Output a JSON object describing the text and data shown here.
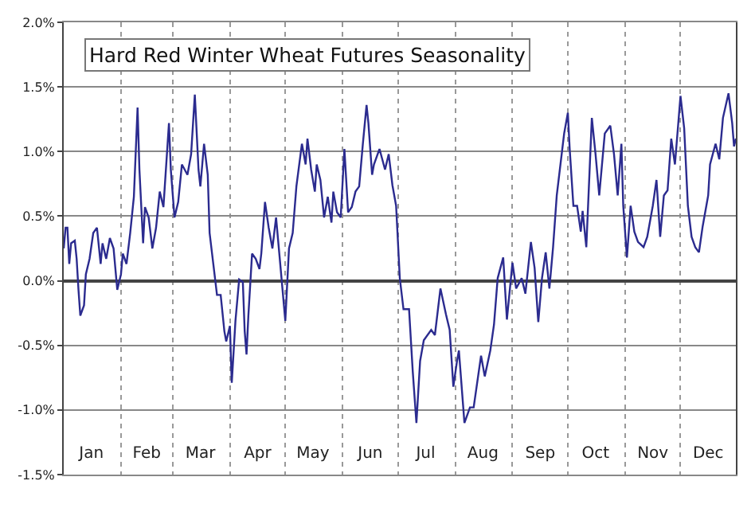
{
  "chart_data": {
    "type": "line",
    "title": "Hard Red Winter Wheat Futures Seasonality",
    "x": [
      "--01-01",
      "--01-02",
      "--01-03",
      "--01-04",
      "--01-05",
      "--01-07",
      "--01-08",
      "--01-09",
      "--01-10",
      "--01-12",
      "--01-13",
      "--01-15",
      "--01-17",
      "--01-19",
      "--01-21",
      "--01-22",
      "--01-24",
      "--01-26",
      "--01-28",
      "--01-30",
      "--02-01",
      "--02-02",
      "--02-04",
      "--02-06",
      "--02-08",
      "--02-10",
      "--02-11",
      "--02-13",
      "--02-14",
      "--02-16",
      "--02-18",
      "--02-20",
      "--02-22",
      "--02-24",
      "--02-27",
      "--02-28",
      "--03-02",
      "--03-04",
      "--03-06",
      "--03-09",
      "--03-11",
      "--03-13",
      "--03-15",
      "--03-16",
      "--03-18",
      "--03-20",
      "--03-21",
      "--03-23",
      "--03-25",
      "--03-27",
      "--03-29",
      "--03-30",
      "--04-01",
      "--04-02",
      "--04-04",
      "--04-06",
      "--04-08",
      "--04-09",
      "--04-10",
      "--04-11",
      "--04-13",
      "--04-15",
      "--04-17",
      "--04-18",
      "--04-20",
      "--04-22",
      "--04-24",
      "--04-26",
      "--04-28",
      "--04-30",
      "--05-01",
      "--05-03",
      "--05-05",
      "--05-07",
      "--05-10",
      "--05-12",
      "--05-13",
      "--05-15",
      "--05-17",
      "--05-18",
      "--05-20",
      "--05-22",
      "--05-24",
      "--05-26",
      "--05-27",
      "--05-29",
      "--05-31",
      "--06-02",
      "--06-04",
      "--06-06",
      "--06-08",
      "--06-10",
      "--06-12",
      "--06-14",
      "--06-15",
      "--06-17",
      "--06-18",
      "--06-21",
      "--06-24",
      "--06-26",
      "--06-28",
      "--06-30",
      "--07-02",
      "--07-04",
      "--07-07",
      "--07-09",
      "--07-11",
      "--07-13",
      "--07-15",
      "--07-19",
      "--07-21",
      "--07-24",
      "--07-27",
      "--07-29",
      "--07-31",
      "--08-02",
      "--08-03",
      "--08-06",
      "--08-09",
      "--08-11",
      "--08-15",
      "--08-17",
      "--08-20",
      "--08-22",
      "--08-24",
      "--08-27",
      "--08-29",
      "--09-01",
      "--09-03",
      "--09-06",
      "--09-08",
      "--09-11",
      "--09-13",
      "--09-15",
      "--09-17",
      "--09-19",
      "--09-21",
      "--09-23",
      "--09-25",
      "--09-29",
      "--10-01",
      "--10-02",
      "--10-04",
      "--10-06",
      "--10-08",
      "--10-09",
      "--10-11",
      "--10-14",
      "--10-16",
      "--10-18",
      "--10-21",
      "--10-24",
      "--10-26",
      "--10-28",
      "--10-30",
      "--10-31",
      "--11-02",
      "--11-04",
      "--11-06",
      "--11-08",
      "--11-11",
      "--11-13",
      "--11-16",
      "--11-18",
      "--11-20",
      "--11-22",
      "--11-24",
      "--11-26",
      "--11-28",
      "--12-01",
      "--12-03",
      "--12-05",
      "--12-07",
      "--12-09",
      "--12-11",
      "--12-13",
      "--12-16",
      "--12-17",
      "--12-20",
      "--12-22",
      "--12-24",
      "--12-27",
      "--12-29",
      "--12-30",
      "--12-31"
    ],
    "series": [
      {
        "color": "#2b2b8f",
        "values": [
          0.25,
          0.41,
          0.41,
          0.13,
          0.29,
          0.31,
          0.17,
          -0.07,
          -0.27,
          -0.19,
          0.05,
          0.17,
          0.37,
          0.41,
          0.13,
          0.29,
          0.17,
          0.33,
          0.25,
          -0.07,
          0.05,
          0.21,
          0.13,
          0.37,
          0.65,
          1.34,
          0.86,
          0.29,
          0.57,
          0.49,
          0.25,
          0.41,
          0.69,
          0.57,
          1.22,
          0.86,
          0.49,
          0.61,
          0.9,
          0.82,
          0.98,
          1.44,
          0.86,
          0.73,
          1.06,
          0.82,
          0.37,
          0.13,
          -0.11,
          -0.11,
          -0.39,
          -0.47,
          -0.35,
          -0.79,
          -0.31,
          0.01,
          -0.01,
          -0.39,
          -0.57,
          -0.27,
          0.21,
          0.17,
          0.09,
          0.21,
          0.61,
          0.41,
          0.25,
          0.49,
          0.17,
          -0.15,
          -0.31,
          0.25,
          0.37,
          0.73,
          1.06,
          0.9,
          1.1,
          0.86,
          0.69,
          0.9,
          0.78,
          0.49,
          0.65,
          0.45,
          0.69,
          0.53,
          0.49,
          1.02,
          0.53,
          0.57,
          0.69,
          0.73,
          1.06,
          1.36,
          1.22,
          0.82,
          0.9,
          1.02,
          0.86,
          0.98,
          0.74,
          0.58,
          0.02,
          -0.22,
          -0.22,
          -0.7,
          -1.1,
          -0.62,
          -0.46,
          -0.38,
          -0.42,
          -0.06,
          -0.26,
          -0.38,
          -0.82,
          -0.62,
          -0.54,
          -1.1,
          -0.98,
          -0.98,
          -0.58,
          -0.74,
          -0.54,
          -0.34,
          0.02,
          0.18,
          -0.3,
          0.14,
          -0.06,
          0.02,
          -0.1,
          0.3,
          0.1,
          -0.32,
          0.02,
          0.22,
          -0.06,
          0.26,
          0.66,
          1.14,
          1.3,
          1.02,
          0.58,
          0.58,
          0.38,
          0.54,
          0.26,
          1.26,
          0.98,
          0.66,
          1.14,
          1.2,
          0.98,
          0.66,
          1.06,
          0.58,
          0.18,
          0.58,
          0.38,
          0.3,
          0.26,
          0.34,
          0.58,
          0.78,
          0.34,
          0.66,
          0.7,
          1.1,
          0.9,
          1.43,
          1.18,
          0.58,
          0.34,
          0.26,
          0.22,
          0.42,
          0.66,
          0.9,
          1.06,
          0.94,
          1.26,
          1.45,
          1.22,
          1.04,
          1.1
        ]
      }
    ],
    "xlim": [
      "--01-01",
      "--12-31"
    ],
    "xticks": [
      {
        "value": "--01-16",
        "label": "Jan"
      },
      {
        "value": "--02-01",
        "label": null
      },
      {
        "value": "--02-15",
        "label": "Feb"
      },
      {
        "value": "--03-01",
        "label": null
      },
      {
        "value": "--03-16",
        "label": "Mar"
      },
      {
        "value": "--04-01",
        "label": null
      },
      {
        "value": "--04-16",
        "label": "Apr"
      },
      {
        "value": "--05-01",
        "label": null
      },
      {
        "value": "--05-16",
        "label": "May"
      },
      {
        "value": "--06-01",
        "label": null
      },
      {
        "value": "--06-16",
        "label": "Jun"
      },
      {
        "value": "--07-01",
        "label": null
      },
      {
        "value": "--07-16",
        "label": "Jul"
      },
      {
        "value": "--08-01",
        "label": null
      },
      {
        "value": "--08-16",
        "label": "Aug"
      },
      {
        "value": "--09-01",
        "label": null
      },
      {
        "value": "--09-16",
        "label": "Sep"
      },
      {
        "value": "--10-01",
        "label": null
      },
      {
        "value": "--10-16",
        "label": "Oct"
      },
      {
        "value": "--11-01",
        "label": null
      },
      {
        "value": "--11-16",
        "label": "Nov"
      },
      {
        "value": "--12-01",
        "label": null
      },
      {
        "value": "--12-16",
        "label": "Dec"
      }
    ],
    "ylim": [
      -1.5,
      2.0
    ],
    "yticks": [
      {
        "value": -1.5,
        "label": "-1.5%"
      },
      {
        "value": -1.0,
        "label": "-1.0%"
      },
      {
        "value": -0.5,
        "label": "-0.5%"
      },
      {
        "value": 0,
        "label": "0.0%"
      },
      {
        "value": 0.5,
        "label": "0.5%"
      },
      {
        "value": 1.0,
        "label": "1.0%"
      },
      {
        "value": 1.5,
        "label": "1.5%"
      },
      {
        "value": 2.0,
        "label": "2.0%"
      }
    ],
    "grid": true,
    "marker": "none",
    "line_style": "solid"
  }
}
